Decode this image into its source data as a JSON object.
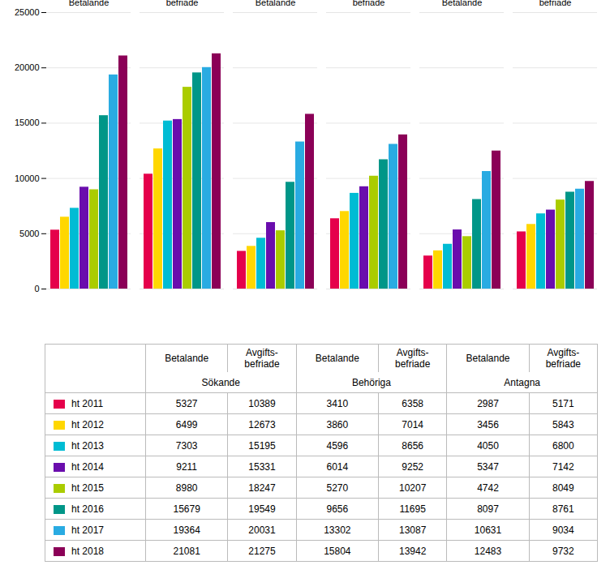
{
  "chart_data": {
    "type": "bar",
    "categories": [
      "Betalande",
      "Avgifts-\nbefriade",
      "Betalande",
      "Avgifts-\nbefriade",
      "Betalande",
      "Avgifts-\nbefriade"
    ],
    "sections": [
      "Sökande",
      "Behöriga",
      "Antagna"
    ],
    "series": [
      {
        "name": "ht 2011",
        "color": "#E5004B",
        "values": [
          5327,
          10389,
          3410,
          6358,
          2987,
          5171
        ]
      },
      {
        "name": "ht 2012",
        "color": "#FFD700",
        "values": [
          6499,
          12673,
          3860,
          7014,
          3456,
          5843
        ]
      },
      {
        "name": "ht 2013",
        "color": "#00BCD4",
        "values": [
          7303,
          15195,
          4596,
          8656,
          4050,
          6800
        ]
      },
      {
        "name": "ht 2014",
        "color": "#6A0DAD",
        "values": [
          9211,
          15331,
          6014,
          9252,
          5347,
          7142
        ]
      },
      {
        "name": "ht 2015",
        "color": "#AACC00",
        "values": [
          8980,
          18247,
          5270,
          10207,
          4742,
          8049
        ]
      },
      {
        "name": "ht 2016",
        "color": "#009688",
        "values": [
          15679,
          19549,
          9656,
          11695,
          8097,
          8761
        ]
      },
      {
        "name": "ht 2017",
        "color": "#29ABE2",
        "values": [
          19364,
          20031,
          13302,
          13087,
          10631,
          9034
        ]
      },
      {
        "name": "ht 2018",
        "color": "#8B0057",
        "values": [
          21081,
          21275,
          15804,
          13942,
          12483,
          9732
        ]
      }
    ],
    "ylim": [
      0,
      25000
    ],
    "yticks": [
      0,
      5000,
      10000,
      15000,
      20000,
      25000
    ],
    "grid": true
  }
}
